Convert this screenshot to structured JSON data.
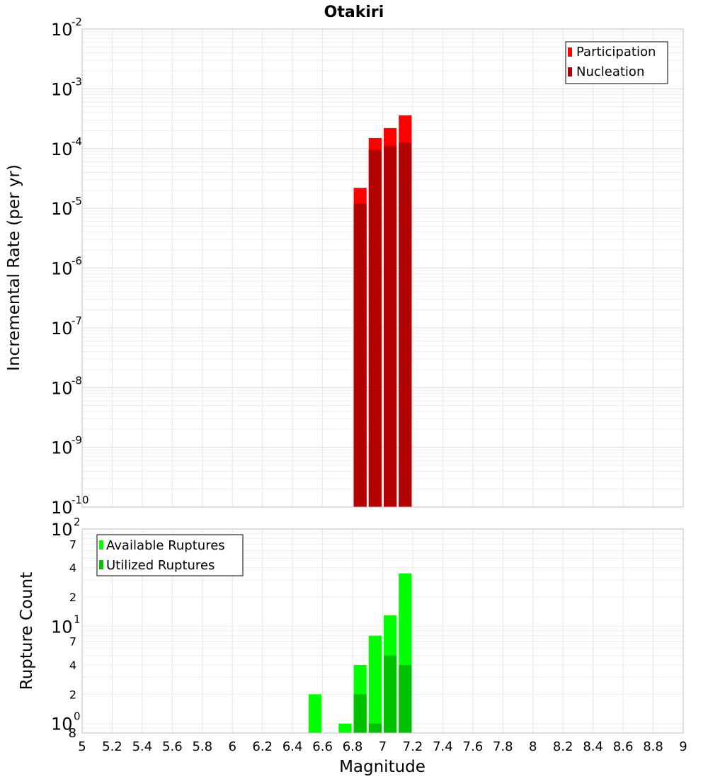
{
  "chart_data": [
    {
      "type": "bar",
      "title": "Otakiri",
      "ylabel": "Incremental Rate (per yr)",
      "xlabel": "",
      "yscale": "log",
      "ylim": [
        1e-10,
        0.01
      ],
      "xlim": [
        5,
        9
      ],
      "grid": true,
      "legend_position": "top-right",
      "x": [
        6.85,
        6.95,
        7.05,
        7.15
      ],
      "bar_width": 0.1,
      "series": [
        {
          "name": "Participation",
          "color": "#ff0000",
          "values": [
            2.2e-05,
            0.00015,
            0.00022,
            0.00036
          ]
        },
        {
          "name": "Nucleation",
          "color": "#b30000",
          "values": [
            1.2e-05,
            9.5e-05,
            0.00011,
            0.000125
          ]
        }
      ],
      "y_ticks": [
        {
          "base": "10",
          "exp": "-10"
        },
        {
          "base": "10",
          "exp": "-9"
        },
        {
          "base": "10",
          "exp": "-8"
        },
        {
          "base": "10",
          "exp": "-7"
        },
        {
          "base": "10",
          "exp": "-6"
        },
        {
          "base": "10",
          "exp": "-5"
        },
        {
          "base": "10",
          "exp": "-4"
        },
        {
          "base": "10",
          "exp": "-3"
        },
        {
          "base": "10",
          "exp": "-2"
        }
      ]
    },
    {
      "type": "bar",
      "title": "",
      "ylabel": "Rupture Count",
      "xlabel": "Magnitude",
      "yscale": "log",
      "ylim": [
        0.8,
        100
      ],
      "xlim": [
        5,
        9
      ],
      "grid": true,
      "legend_position": "top-left",
      "x": [
        6.55,
        6.75,
        6.85,
        6.95,
        7.05,
        7.15
      ],
      "bar_width": 0.1,
      "series": [
        {
          "name": "Available Ruptures",
          "color": "#00ff00",
          "values": [
            2,
            1,
            4,
            8,
            13,
            35
          ]
        },
        {
          "name": "Utilized Ruptures",
          "color": "#00c000",
          "values": [
            0,
            0,
            2,
            1,
            5,
            4
          ]
        }
      ],
      "y_major_ticks": [
        {
          "base": "10",
          "exp": "0"
        },
        {
          "base": "10",
          "exp": "1"
        },
        {
          "base": "10",
          "exp": "2"
        }
      ],
      "y_minor_ticks": [
        "8",
        "2",
        "4",
        "7",
        "2",
        "4",
        "7"
      ],
      "x_tick_labels": [
        "5",
        "5.2",
        "5.4",
        "5.6",
        "5.8",
        "6",
        "6.2",
        "6.4",
        "6.6",
        "6.8",
        "7",
        "7.2",
        "7.4",
        "7.6",
        "7.8",
        "8",
        "8.2",
        "8.4",
        "8.6",
        "8.8",
        "9"
      ]
    }
  ]
}
